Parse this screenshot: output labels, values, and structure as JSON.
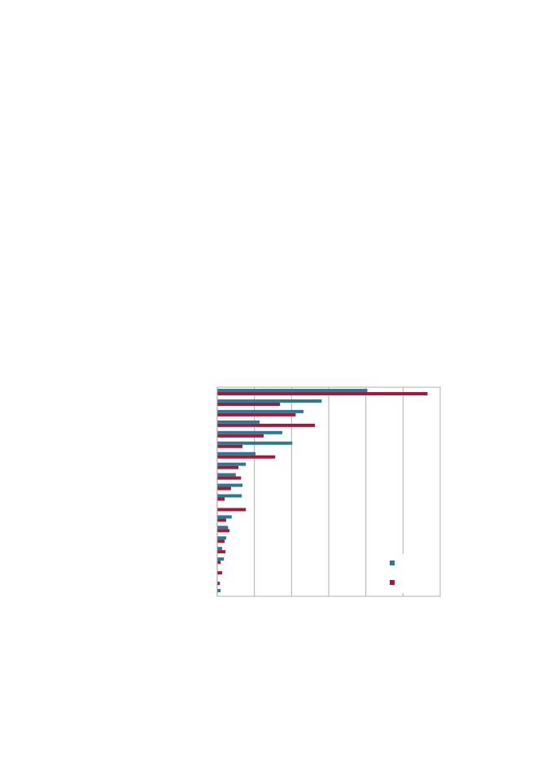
{
  "chart_data": {
    "type": "bar",
    "orientation": "horizontal",
    "categories": [
      null,
      null,
      null,
      null,
      null,
      null,
      null,
      null,
      null,
      null,
      null,
      null,
      null,
      null,
      null,
      null,
      null,
      null,
      null,
      null
    ],
    "series": [
      {
        "color": "#2a7a96",
        "values": [
          4.04,
          2.81,
          2.32,
          1.14,
          1.75,
          2.02,
          1.03,
          0.77,
          0.5,
          0.68,
          0.66,
          0,
          0.39,
          0.29,
          0.24,
          0.13,
          0.18,
          0,
          0,
          0.09
        ]
      },
      {
        "color": "#a8163c",
        "values": [
          5.66,
          1.69,
          2.11,
          2.63,
          1.25,
          0.68,
          1.56,
          0.57,
          0.64,
          0.37,
          0.2,
          0.77,
          0.24,
          0.33,
          0.2,
          0.22,
          0.09,
          0.13,
          0.07,
          0
        ]
      }
    ],
    "xlim": [
      0,
      6
    ],
    "xticks": [
      0,
      1,
      2,
      3,
      4,
      5,
      6
    ],
    "grid": true,
    "legend": "lower right"
  }
}
